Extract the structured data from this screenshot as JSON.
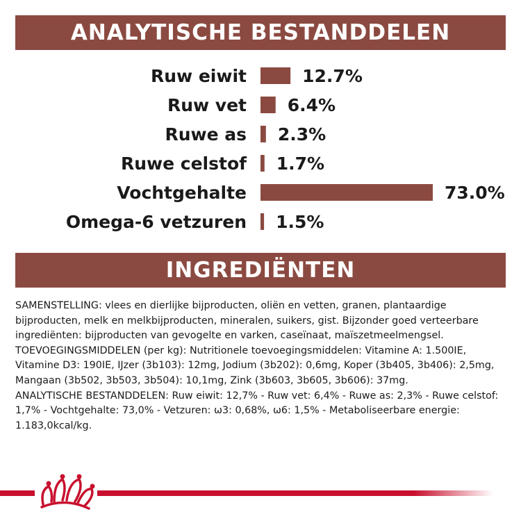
{
  "banners": {
    "analytic": "ANALYTISCHE BESTANDDELEN",
    "ingredients": "INGREDIËNTEN"
  },
  "colors": {
    "banner": "#8b4a41",
    "bar": "#8b4a41",
    "footer_stripe": "#c8102e",
    "logo": "#c8102e"
  },
  "chart_data": {
    "type": "bar",
    "orientation": "horizontal",
    "categories": [
      "Ruw eiwit",
      "Ruw vet",
      "Ruwe as",
      "Ruwe celstof",
      "Vochtgehalte",
      "Omega-6 vetzuren"
    ],
    "values": [
      12.7,
      6.4,
      2.3,
      1.7,
      73.0,
      1.5
    ],
    "value_labels": [
      "12.7%",
      "6.4%",
      "2.3%",
      "1.7%",
      "73.0%",
      "1.5%"
    ],
    "unit": "%",
    "xlim": [
      0,
      73.0
    ],
    "grid": false,
    "legend": "none"
  },
  "ingredients_text": [
    "SAMENSTELLING: vlees en dierlijke bijproducten, oliën en vetten, granen, plantaardige bijproducten, melk en melkbijproducten, mineralen, suikers, gist. Bijzonder goed verteerbare ingrediënten: bijproducten van gevogelte en varken, caseïnaat, maïszetmeelmengsel.",
    "TOEVOEGINGSMIDDELEN (per kg): Nutritionele toevoegingsmiddelen: Vitamine A: 1.500IE, Vitamine D3: 190IE, IJzer (3b103): 12mg, Jodium (3b202): 0,6mg, Koper (3b405, 3b406): 2,5mg, Mangaan (3b502, 3b503, 3b504): 10,1mg, Zink (3b603, 3b605, 3b606): 37mg.",
    "ANALYTISCHE BESTANDDELEN: Ruw eiwit: 12,7% - Ruw vet: 6,4% - Ruwe as: 2,3% - Ruwe celstof: 1,7% - Vochtgehalte: 73,0% - Vetzuren: ω3: 0,68%, ω6: 1,5% - Metaboliseerbare energie: 1.183,0kcal/kg."
  ],
  "footer": {
    "logo_icon": "crown-icon"
  }
}
